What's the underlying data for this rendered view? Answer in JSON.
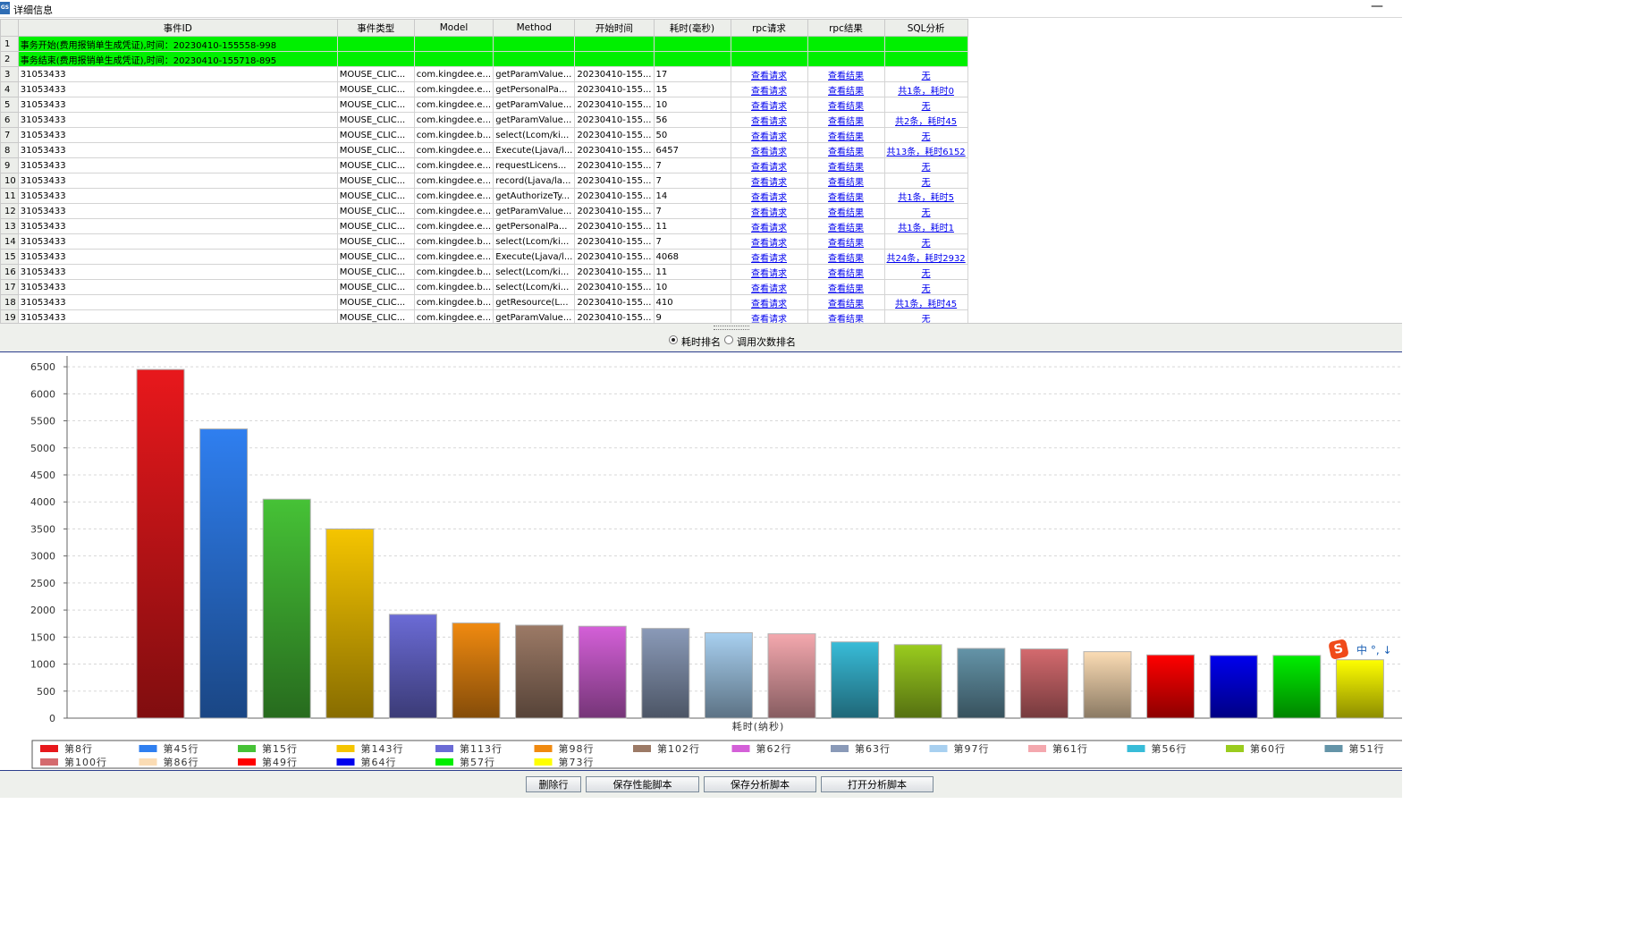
{
  "window": {
    "title": "详细信息",
    "icon": "app-icon",
    "icon_text": "GS",
    "minimize_glyph": "—"
  },
  "grid": {
    "columns": [
      "事件ID",
      "事件类型",
      "Model",
      "Method",
      "开始时间",
      "耗时(毫秒)",
      "rpc请求",
      "rpc结果",
      "SQL分析"
    ],
    "highlight_color": "#00f000",
    "banner_rows": [
      {
        "n": "1",
        "text": "事务开始(费用报销单生成凭证),时间：20230410-155558-998"
      },
      {
        "n": "2",
        "text": "事务结束(费用报销单生成凭证),时间：20230410-155718-895"
      }
    ],
    "rows": [
      {
        "n": "3",
        "id": "31053433",
        "type": "MOUSE_CLIC...",
        "model": "com.kingdee.e...",
        "method": "getParamValue...",
        "start": "20230410-155...",
        "ms": "17",
        "req": "查看请求",
        "res": "查看结果",
        "sql": "无"
      },
      {
        "n": "4",
        "id": "31053433",
        "type": "MOUSE_CLIC...",
        "model": "com.kingdee.e...",
        "method": "getPersonalPa...",
        "start": "20230410-155...",
        "ms": "15",
        "req": "查看请求",
        "res": "查看结果",
        "sql": "共1条，耗时0"
      },
      {
        "n": "5",
        "id": "31053433",
        "type": "MOUSE_CLIC...",
        "model": "com.kingdee.e...",
        "method": "getParamValue...",
        "start": "20230410-155...",
        "ms": "10",
        "req": "查看请求",
        "res": "查看结果",
        "sql": "无"
      },
      {
        "n": "6",
        "id": "31053433",
        "type": "MOUSE_CLIC...",
        "model": "com.kingdee.e...",
        "method": "getParamValue...",
        "start": "20230410-155...",
        "ms": "56",
        "req": "查看请求",
        "res": "查看结果",
        "sql": "共2条，耗时45"
      },
      {
        "n": "7",
        "id": "31053433",
        "type": "MOUSE_CLIC...",
        "model": "com.kingdee.b...",
        "method": "select(Lcom/ki...",
        "start": "20230410-155...",
        "ms": "50",
        "req": "查看请求",
        "res": "查看结果",
        "sql": "无"
      },
      {
        "n": "8",
        "id": "31053433",
        "type": "MOUSE_CLIC...",
        "model": "com.kingdee.e...",
        "method": "Execute(Ljava/l...",
        "start": "20230410-155...",
        "ms": "6457",
        "req": "查看请求",
        "res": "查看结果",
        "sql": "共13条，耗时6152"
      },
      {
        "n": "9",
        "id": "31053433",
        "type": "MOUSE_CLIC...",
        "model": "com.kingdee.e...",
        "method": "requestLicens...",
        "start": "20230410-155...",
        "ms": "7",
        "req": "查看请求",
        "res": "查看结果",
        "sql": "无"
      },
      {
        "n": "10",
        "id": "31053433",
        "type": "MOUSE_CLIC...",
        "model": "com.kingdee.e...",
        "method": "record(Ljava/la...",
        "start": "20230410-155...",
        "ms": "7",
        "req": "查看请求",
        "res": "查看结果",
        "sql": "无"
      },
      {
        "n": "11",
        "id": "31053433",
        "type": "MOUSE_CLIC...",
        "model": "com.kingdee.e...",
        "method": "getAuthorizeTy...",
        "start": "20230410-155...",
        "ms": "14",
        "req": "查看请求",
        "res": "查看结果",
        "sql": "共1条，耗时5"
      },
      {
        "n": "12",
        "id": "31053433",
        "type": "MOUSE_CLIC...",
        "model": "com.kingdee.e...",
        "method": "getParamValue...",
        "start": "20230410-155...",
        "ms": "7",
        "req": "查看请求",
        "res": "查看结果",
        "sql": "无"
      },
      {
        "n": "13",
        "id": "31053433",
        "type": "MOUSE_CLIC...",
        "model": "com.kingdee.e...",
        "method": "getPersonalPa...",
        "start": "20230410-155...",
        "ms": "11",
        "req": "查看请求",
        "res": "查看结果",
        "sql": "共1条，耗时1"
      },
      {
        "n": "14",
        "id": "31053433",
        "type": "MOUSE_CLIC...",
        "model": "com.kingdee.b...",
        "method": "select(Lcom/ki...",
        "start": "20230410-155...",
        "ms": "7",
        "req": "查看请求",
        "res": "查看结果",
        "sql": "无"
      },
      {
        "n": "15",
        "id": "31053433",
        "type": "MOUSE_CLIC...",
        "model": "com.kingdee.e...",
        "method": "Execute(Ljava/l...",
        "start": "20230410-155...",
        "ms": "4068",
        "req": "查看请求",
        "res": "查看结果",
        "sql": "共24条，耗时2932"
      },
      {
        "n": "16",
        "id": "31053433",
        "type": "MOUSE_CLIC...",
        "model": "com.kingdee.b...",
        "method": "select(Lcom/ki...",
        "start": "20230410-155...",
        "ms": "11",
        "req": "查看请求",
        "res": "查看结果",
        "sql": "无"
      },
      {
        "n": "17",
        "id": "31053433",
        "type": "MOUSE_CLIC...",
        "model": "com.kingdee.b...",
        "method": "select(Lcom/ki...",
        "start": "20230410-155...",
        "ms": "10",
        "req": "查看请求",
        "res": "查看结果",
        "sql": "无"
      },
      {
        "n": "18",
        "id": "31053433",
        "type": "MOUSE_CLIC...",
        "model": "com.kingdee.b...",
        "method": "getResource(L...",
        "start": "20230410-155...",
        "ms": "410",
        "req": "查看请求",
        "res": "查看结果",
        "sql": "共1条，耗时45"
      },
      {
        "n": "19",
        "id": "31053433",
        "type": "MOUSE_CLIC...",
        "model": "com.kingdee.e...",
        "method": "getParamValue...",
        "start": "20230410-155...",
        "ms": "9",
        "req": "查看请求",
        "res": "查看结果",
        "sql": "无"
      }
    ]
  },
  "ranking": {
    "options": [
      "耗时排名",
      "调用次数排名"
    ],
    "selected": 0
  },
  "chart_data": {
    "type": "bar",
    "title": "",
    "xlabel": "耗时(纳秒)",
    "ylabel": "",
    "ylim": [
      0,
      6700
    ],
    "yticks": [
      "0",
      "500",
      "1000",
      "1500",
      "2000",
      "2500",
      "3000",
      "3500",
      "4000",
      "4500",
      "5000",
      "5500",
      "6000",
      "6500"
    ],
    "grid": true,
    "legend_position": "bottom",
    "series": [
      {
        "name": "第8行",
        "value": 6450,
        "color": "#e8181c"
      },
      {
        "name": "第45行",
        "value": 5350,
        "color": "#2f7ff0"
      },
      {
        "name": "第15行",
        "value": 4050,
        "color": "#46c236"
      },
      {
        "name": "第143行",
        "value": 3500,
        "color": "#f5c500"
      },
      {
        "name": "第113行",
        "value": 1920,
        "color": "#6b6bd6"
      },
      {
        "name": "第98行",
        "value": 1760,
        "color": "#f08a10"
      },
      {
        "name": "第102行",
        "value": 1720,
        "color": "#9c7a66"
      },
      {
        "name": "第62行",
        "value": 1700,
        "color": "#d460d8"
      },
      {
        "name": "第63行",
        "value": 1660,
        "color": "#8a9ab8"
      },
      {
        "name": "第97行",
        "value": 1580,
        "color": "#a8d0f0"
      },
      {
        "name": "第61行",
        "value": 1560,
        "color": "#f4a8ae"
      },
      {
        "name": "第56行",
        "value": 1410,
        "color": "#38bcd8"
      },
      {
        "name": "第60行",
        "value": 1360,
        "color": "#9acc1e"
      },
      {
        "name": "第51行",
        "value": 1290,
        "color": "#6494a8"
      },
      {
        "name": "第100行",
        "value": 1280,
        "color": "#d46a6e"
      },
      {
        "name": "第86行",
        "value": 1230,
        "color": "#fbdcb4"
      },
      {
        "name": "第49行",
        "value": 1170,
        "color": "#ff0000"
      },
      {
        "name": "第64行",
        "value": 1160,
        "color": "#0000ee"
      },
      {
        "name": "第57行",
        "value": 1160,
        "color": "#00ee00"
      },
      {
        "name": "第73行",
        "value": 1080,
        "color": "#ffff00"
      }
    ]
  },
  "ime": {
    "logo": "S",
    "text": "中 °, ↓"
  },
  "buttons": {
    "delete_row": "删除行",
    "save_perf_script": "保存性能脚本",
    "save_analysis_script": "保存分析脚本",
    "open_analysis_script": "打开分析脚本"
  }
}
